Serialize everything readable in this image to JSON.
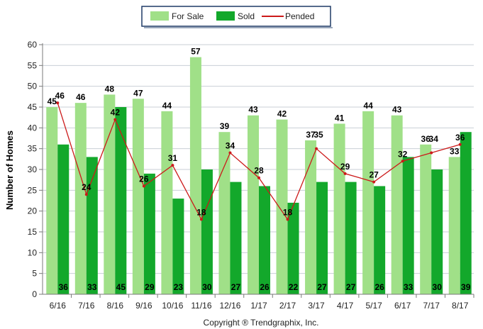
{
  "chart_data": {
    "type": "bar",
    "ylabel": "Number of Homes",
    "ylim": [
      0,
      60
    ],
    "y_ticks": [
      0,
      5,
      10,
      15,
      20,
      25,
      30,
      35,
      40,
      45,
      50,
      55,
      60
    ],
    "grid": true,
    "legend_position": "top-center",
    "categories": [
      "6/16",
      "7/16",
      "8/16",
      "9/16",
      "10/16",
      "11/16",
      "12/16",
      "1/17",
      "2/17",
      "3/17",
      "4/17",
      "5/17",
      "6/17",
      "7/17",
      "8/17"
    ],
    "series": [
      {
        "name": "For Sale",
        "kind": "bar",
        "color": "#a0e088",
        "values": [
          45,
          46,
          48,
          47,
          44,
          57,
          39,
          43,
          42,
          37,
          41,
          44,
          43,
          36,
          33
        ]
      },
      {
        "name": "Sold",
        "kind": "bar",
        "color": "#13a82b",
        "values": [
          36,
          33,
          45,
          29,
          23,
          30,
          27,
          26,
          22,
          27,
          27,
          26,
          33,
          30,
          39
        ]
      },
      {
        "name": "Pended",
        "kind": "line",
        "color": "#cc1a1a",
        "values": [
          46,
          24,
          42,
          26,
          31,
          18,
          34,
          28,
          18,
          35,
          29,
          27,
          32,
          34,
          36
        ]
      }
    ]
  },
  "credit": "Copyright ® Trendgraphix, Inc."
}
